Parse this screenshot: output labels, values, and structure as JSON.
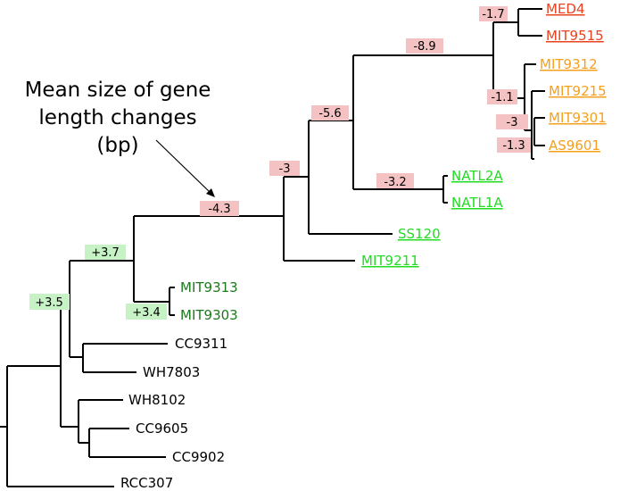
{
  "callout": {
    "lines": [
      "Mean size of gene",
      "length changes",
      "(bp)"
    ]
  },
  "colors": {
    "high_light": "#e8431f",
    "low_light": "#f5a01d",
    "ll_green": "#22dd22",
    "syn_green": "#1a7a1a",
    "neg_badge": "#f4c2c2",
    "pos_badge": "#c6f2c6"
  },
  "leaves": {
    "med4": "MED4",
    "mit9515": "MIT9515",
    "mit9312": "MIT9312",
    "mit9215": "MIT9215",
    "mit9301": "MIT9301",
    "as9601": "AS9601",
    "natl2a": "NATL2A",
    "natl1a": "NATL1A",
    "ss120": "SS120",
    "mit9211": "MIT9211",
    "mit9313": "MIT9313",
    "mit9303": "MIT9303",
    "cc9311": "CC9311",
    "wh7803": "WH7803",
    "wh8102": "WH8102",
    "cc9605": "CC9605",
    "cc9902": "CC9902",
    "rcc307": "RCC307"
  },
  "badges": {
    "b_med4": "-1.7",
    "b_hl": "-8.9",
    "b_hl2": "-1.1",
    "b_9301": "-3",
    "b_as9601": "-1.3",
    "b_pro": "-5.6",
    "b_natl": "-3.2",
    "b_ll": "-3",
    "b_main": "-4.3",
    "b_syn": "+3.7",
    "b_9303": "+3.4",
    "b_root": "+3.5"
  }
}
